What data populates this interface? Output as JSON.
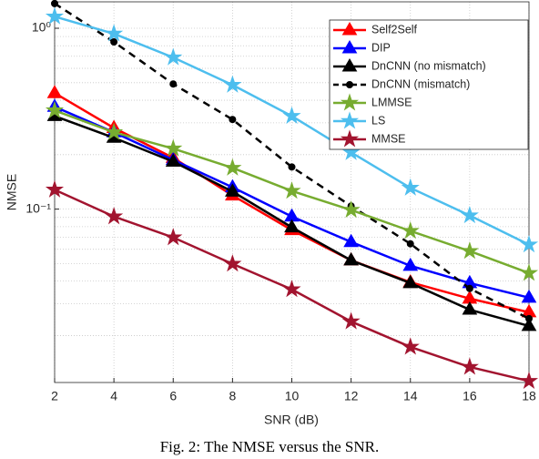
{
  "chart_data": {
    "type": "line",
    "caption": "Fig. 2: The NMSE versus the SNR.",
    "xlabel": "SNR (dB)",
    "ylabel": "NMSE",
    "x": [
      2,
      4,
      6,
      8,
      10,
      12,
      14,
      16,
      18
    ],
    "xlim": [
      2,
      18
    ],
    "xticks": [
      2,
      4,
      6,
      8,
      10,
      12,
      14,
      16,
      18
    ],
    "ylim": [
      0.011,
      1.4
    ],
    "yscale": "log",
    "yticks": [
      {
        "value": 0.1,
        "label": "10⁻¹"
      },
      {
        "value": 1,
        "label": "10⁰"
      }
    ],
    "yminorticks": [
      0.02,
      0.03,
      0.04,
      0.05,
      0.06,
      0.07,
      0.08,
      0.09,
      0.2,
      0.3,
      0.4,
      0.5,
      0.6,
      0.7,
      0.8,
      0.9
    ],
    "grid": true,
    "legend": "upper right",
    "series": [
      {
        "name": "Self2Self",
        "color": "#ff0000",
        "marker": "triangle",
        "dash": false,
        "values": [
          0.438,
          0.281,
          0.192,
          0.119,
          0.0766,
          0.0521,
          0.0394,
          0.032,
          0.0269
        ]
      },
      {
        "name": "DIP",
        "color": "#0000ff",
        "marker": "triangle",
        "dash": false,
        "values": [
          0.368,
          0.266,
          0.187,
          0.132,
          0.091,
          0.0658,
          0.0486,
          0.039,
          0.0324
        ]
      },
      {
        "name": "DnCNN (no mismatch)",
        "color": "#000000",
        "marker": "triangle",
        "dash": false,
        "values": [
          0.327,
          0.248,
          0.183,
          0.125,
          0.0793,
          0.0521,
          0.039,
          0.0278,
          0.0226
        ]
      },
      {
        "name": "DnCNN (mismatch)",
        "color": "#000000",
        "marker": "circle",
        "dash": true,
        "values": [
          1.37,
          0.84,
          0.492,
          0.313,
          0.171,
          0.104,
          0.0643,
          0.0364,
          0.0248
        ]
      },
      {
        "name": "LMMSE",
        "color": "#77ac30",
        "marker": "star",
        "dash": false,
        "values": [
          0.351,
          0.266,
          0.216,
          0.169,
          0.126,
          0.0989,
          0.0757,
          0.0586,
          0.0443
        ]
      },
      {
        "name": "LS",
        "color": "#4dbeee",
        "marker": "star",
        "dash": false,
        "values": [
          1.16,
          0.933,
          0.689,
          0.486,
          0.327,
          0.206,
          0.131,
          0.0922,
          0.0636
        ]
      },
      {
        "name": "MMSE",
        "color": "#a2142f",
        "marker": "star",
        "dash": false,
        "values": [
          0.128,
          0.091,
          0.0697,
          0.0498,
          0.036,
          0.0239,
          0.0173,
          0.0134,
          0.0112
        ]
      }
    ]
  }
}
